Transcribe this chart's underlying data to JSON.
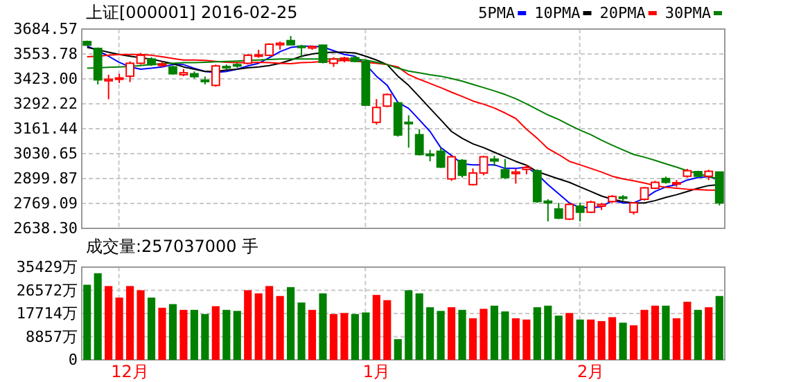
{
  "chart_data": [
    {
      "type": "candlestick",
      "title": "上证[000001] 2016-02-25",
      "categories": [
        null,
        null,
        null,
        null,
        null,
        null,
        null,
        null,
        null,
        null,
        null,
        null,
        null,
        null,
        null,
        null,
        null,
        null,
        null,
        null,
        null,
        null,
        null,
        null,
        null,
        null,
        null,
        null,
        null,
        null,
        null,
        null,
        null,
        null,
        null,
        null,
        null,
        null,
        null,
        null,
        null,
        null,
        null,
        null,
        null,
        null,
        null,
        null,
        null,
        null,
        null,
        null,
        null,
        null,
        null,
        null,
        null,
        null,
        null,
        null
      ],
      "ohlc": [
        [
          3619,
          3624,
          3600,
          3600
        ],
        [
          3583,
          3588,
          3394,
          3418
        ],
        [
          3413,
          3445,
          3316,
          3421
        ],
        [
          3421,
          3450,
          3401,
          3428
        ],
        [
          3437,
          3515,
          3406,
          3505
        ],
        [
          3505,
          3559,
          3498,
          3547
        ],
        [
          3527,
          3537,
          3491,
          3498
        ],
        [
          3496,
          3515,
          3484,
          3501
        ],
        [
          3486,
          3493,
          3445,
          3450
        ],
        [
          3445,
          3474,
          3437,
          3455
        ],
        [
          3450,
          3462,
          3425,
          3435
        ],
        [
          3416,
          3435,
          3394,
          3411
        ],
        [
          3389,
          3498,
          3382,
          3491
        ],
        [
          3488,
          3498,
          3474,
          3484
        ],
        [
          3498,
          3508,
          3481,
          3493
        ],
        [
          3505,
          3554,
          3498,
          3547
        ],
        [
          3542,
          3576,
          3534,
          3549
        ],
        [
          3547,
          3610,
          3542,
          3605
        ],
        [
          3602,
          3619,
          3576,
          3610
        ],
        [
          3624,
          3648,
          3600,
          3602
        ],
        [
          3595,
          3602,
          3534,
          3590
        ],
        [
          3585,
          3597,
          3576,
          3593
        ],
        [
          3600,
          3602,
          3505,
          3510
        ],
        [
          3505,
          3537,
          3486,
          3527
        ],
        [
          3527,
          3539,
          3510,
          3532
        ],
        [
          3534,
          3546,
          3510,
          3515
        ],
        [
          3515,
          3520,
          3285,
          3285
        ],
        [
          3195,
          3317,
          3183,
          3273
        ],
        [
          3280,
          3346,
          3275,
          3341
        ],
        [
          3297,
          3302,
          3120,
          3128
        ],
        [
          3195,
          3232,
          3062,
          3188
        ],
        [
          3130,
          3159,
          3021,
          3026
        ],
        [
          3028,
          3050,
          2990,
          3023
        ],
        [
          3043,
          3062,
          2956,
          2960
        ],
        [
          2898,
          3021,
          2888,
          3014
        ],
        [
          2995,
          3002,
          2905,
          2917
        ],
        [
          2868,
          2953,
          2863,
          2929
        ],
        [
          2929,
          3019,
          2917,
          3014
        ],
        [
          3002,
          3019,
          2965,
          2992
        ],
        [
          2946,
          3002,
          2898,
          2905
        ],
        [
          2926,
          2951,
          2873,
          2934
        ],
        [
          2948,
          2972,
          2922,
          2958
        ],
        [
          2941,
          2948,
          2772,
          2779
        ],
        [
          2781,
          2791,
          2675,
          2772
        ],
        [
          2740,
          2772,
          2687,
          2692
        ],
        [
          2687,
          2772,
          2682,
          2764
        ],
        [
          2755,
          2772,
          2675,
          2723
        ],
        [
          2723,
          2784,
          2718,
          2776
        ],
        [
          2755,
          2772,
          2735,
          2764
        ],
        [
          2779,
          2813,
          2772,
          2806
        ],
        [
          2803,
          2813,
          2784,
          2796
        ],
        [
          2723,
          2776,
          2711,
          2772
        ],
        [
          2791,
          2856,
          2784,
          2851
        ],
        [
          2849,
          2888,
          2844,
          2880
        ],
        [
          2900,
          2910,
          2873,
          2880
        ],
        [
          2873,
          2892,
          2856,
          2878
        ],
        [
          2912,
          2951,
          2905,
          2941
        ],
        [
          2936,
          2941,
          2905,
          2912
        ],
        [
          2912,
          2946,
          2892,
          2938
        ],
        [
          2934,
          2936,
          2759,
          2772
        ]
      ],
      "colors": [
        "#008000",
        "#008000",
        "#ff0000",
        "#ff0000",
        "#ff0000",
        "#ff0000",
        "#008000",
        "#ff0000",
        "#008000",
        "#ff0000",
        "#008000",
        "#008000",
        "#ff0000",
        "#008000",
        "#008000",
        "#ff0000",
        "#ff0000",
        "#ff0000",
        "#ff0000",
        "#008000",
        "#008000",
        "#ff0000",
        "#008000",
        "#ff0000",
        "#ff0000",
        "#008000",
        "#008000",
        "#ff0000",
        "#ff0000",
        "#008000",
        "#008000",
        "#008000",
        "#008000",
        "#008000",
        "#ff0000",
        "#008000",
        "#ff0000",
        "#ff0000",
        "#008000",
        "#008000",
        "#ff0000",
        "#ff0000",
        "#008000",
        "#008000",
        "#008000",
        "#ff0000",
        "#008000",
        "#ff0000",
        "#ff0000",
        "#ff0000",
        "#008000",
        "#ff0000",
        "#ff0000",
        "#ff0000",
        "#008000",
        "#ff0000",
        "#ff0000",
        "#008000",
        "#ff0000",
        "#008000"
      ],
      "series": [
        {
          "type": "line",
          "name": "5PMA",
          "color": "#0000ff",
          "values": [
            3595,
            3571,
            3542,
            3510,
            3486,
            3474,
            3479,
            3486,
            3498,
            3498,
            3479,
            3462,
            3457,
            3462,
            3474,
            3491,
            3505,
            3534,
            3566,
            3588,
            3595,
            3595,
            3590,
            3571,
            3551,
            3542,
            3498,
            3437,
            3389,
            3299,
            3268,
            3208,
            3147,
            3062,
            3021,
            2977,
            2972,
            2972,
            2972,
            2953,
            2953,
            2960,
            2922,
            2868,
            2820,
            2772,
            2747,
            2747,
            2752,
            2784,
            2772,
            2772,
            2796,
            2832,
            2856,
            2868,
            2892,
            2905,
            2910,
            2892
          ]
        },
        {
          "type": "line",
          "name": "10PMA",
          "color": "#000000",
          "values": [
            3588,
            3576,
            3563,
            3551,
            3542,
            3534,
            3527,
            3515,
            3503,
            3486,
            3474,
            3462,
            3462,
            3469,
            3474,
            3481,
            3486,
            3493,
            3505,
            3522,
            3542,
            3554,
            3561,
            3563,
            3563,
            3559,
            3542,
            3522,
            3498,
            3437,
            3389,
            3329,
            3268,
            3208,
            3147,
            3111,
            3082,
            3062,
            3038,
            3014,
            2990,
            2970,
            2936,
            2917,
            2898,
            2880,
            2856,
            2832,
            2808,
            2791,
            2779,
            2772,
            2772,
            2784,
            2801,
            2815,
            2832,
            2849,
            2863,
            2868
          ]
        },
        {
          "type": "line",
          "name": "20PMA",
          "color": "#ff0000",
          "values": [
            3539,
            3542,
            3547,
            3551,
            3551,
            3551,
            3547,
            3539,
            3530,
            3522,
            3522,
            3520,
            3515,
            3510,
            3508,
            3508,
            3510,
            3508,
            3505,
            3503,
            3508,
            3510,
            3515,
            3517,
            3520,
            3517,
            3510,
            3505,
            3498,
            3486,
            3445,
            3421,
            3399,
            3377,
            3353,
            3331,
            3307,
            3290,
            3270,
            3244,
            3215,
            3159,
            3111,
            3057,
            3026,
            2990,
            2972,
            2953,
            2934,
            2912,
            2898,
            2888,
            2876,
            2863,
            2854,
            2849,
            2844,
            2842,
            2839,
            2839
          ]
        },
        {
          "type": "line",
          "name": "30PMA",
          "color": "#008000",
          "values": [
            3479,
            3481,
            3484,
            3486,
            3488,
            3493,
            3498,
            3503,
            3505,
            3508,
            3508,
            3510,
            3513,
            3515,
            3517,
            3520,
            3522,
            3525,
            3527,
            3527,
            3527,
            3527,
            3527,
            3527,
            3527,
            3527,
            3522,
            3510,
            3498,
            3479,
            3464,
            3455,
            3445,
            3437,
            3425,
            3411,
            3394,
            3377,
            3360,
            3341,
            3319,
            3292,
            3263,
            3234,
            3210,
            3181,
            3154,
            3130,
            3101,
            3075,
            3050,
            3026,
            3012,
            2995,
            2977,
            2960,
            2941,
            2926,
            2910,
            2898
          ]
        }
      ],
      "ylim": [
        2638.3,
        3684.57
      ],
      "yticks": [
        {
          "value": 2638.3,
          "label": "2638.30"
        },
        3030.65,
        2899.87,
        2769.09,
        {
          "value": 3423.0,
          "label": "3423.00"
        },
        3292.22,
        3161.44,
        3553.78,
        3684.57
      ],
      "grid": true,
      "legend": "top right",
      "tick_labels": "y"
    },
    {
      "type": "bar",
      "title": "成交量:257037000 手",
      "categories": [
        null,
        null,
        null,
        null,
        "12月",
        null,
        null,
        null,
        null,
        null,
        null,
        null,
        null,
        null,
        null,
        null,
        null,
        null,
        null,
        null,
        null,
        null,
        null,
        null,
        null,
        null,
        null,
        "1月",
        null,
        null,
        null,
        null,
        null,
        null,
        null,
        null,
        null,
        null,
        null,
        null,
        null,
        null,
        null,
        null,
        null,
        null,
        null,
        "2月",
        null,
        null,
        null,
        null,
        null,
        null,
        null,
        null,
        null,
        null,
        null,
        null
      ],
      "values": [
        28700,
        33100,
        28200,
        23800,
        28200,
        26600,
        23800,
        19900,
        21300,
        19100,
        19100,
        17500,
        20500,
        19100,
        18700,
        26600,
        25400,
        28200,
        24400,
        27800,
        21900,
        19100,
        25400,
        17500,
        17900,
        17500,
        18100,
        24800,
        22800,
        7900,
        26600,
        25400,
        20100,
        18700,
        20100,
        19100,
        15900,
        19500,
        20700,
        18500,
        15900,
        15400,
        20100,
        20700,
        16900,
        17900,
        15400,
        15400,
        14800,
        16300,
        14200,
        13200,
        19100,
        20700,
        20700,
        15900,
        22200,
        19100,
        20100,
        24400
      ],
      "colors": [
        "#008000",
        "#008000",
        "#ff0000",
        "#ff0000",
        "#ff0000",
        "#ff0000",
        "#008000",
        "#ff0000",
        "#008000",
        "#ff0000",
        "#008000",
        "#008000",
        "#ff0000",
        "#008000",
        "#008000",
        "#ff0000",
        "#ff0000",
        "#ff0000",
        "#ff0000",
        "#008000",
        "#008000",
        "#ff0000",
        "#008000",
        "#ff0000",
        "#ff0000",
        "#008000",
        "#008000",
        "#ff0000",
        "#ff0000",
        "#008000",
        "#008000",
        "#008000",
        "#008000",
        "#008000",
        "#ff0000",
        "#008000",
        "#ff0000",
        "#ff0000",
        "#008000",
        "#008000",
        "#ff0000",
        "#ff0000",
        "#008000",
        "#008000",
        "#008000",
        "#ff0000",
        "#008000",
        "#ff0000",
        "#ff0000",
        "#ff0000",
        "#008000",
        "#ff0000",
        "#ff0000",
        "#ff0000",
        "#008000",
        "#ff0000",
        "#ff0000",
        "#008000",
        "#ff0000",
        "#008000"
      ],
      "ylim": [
        0,
        35429
      ],
      "yticks": [
        0,
        {
          "value": 8857,
          "label": "8857万"
        },
        {
          "value": 17714,
          "label": "17714万"
        },
        {
          "value": 26572,
          "label": "26572万"
        },
        {
          "value": 35429,
          "label": "35429万"
        }
      ],
      "grid": true
    }
  ]
}
